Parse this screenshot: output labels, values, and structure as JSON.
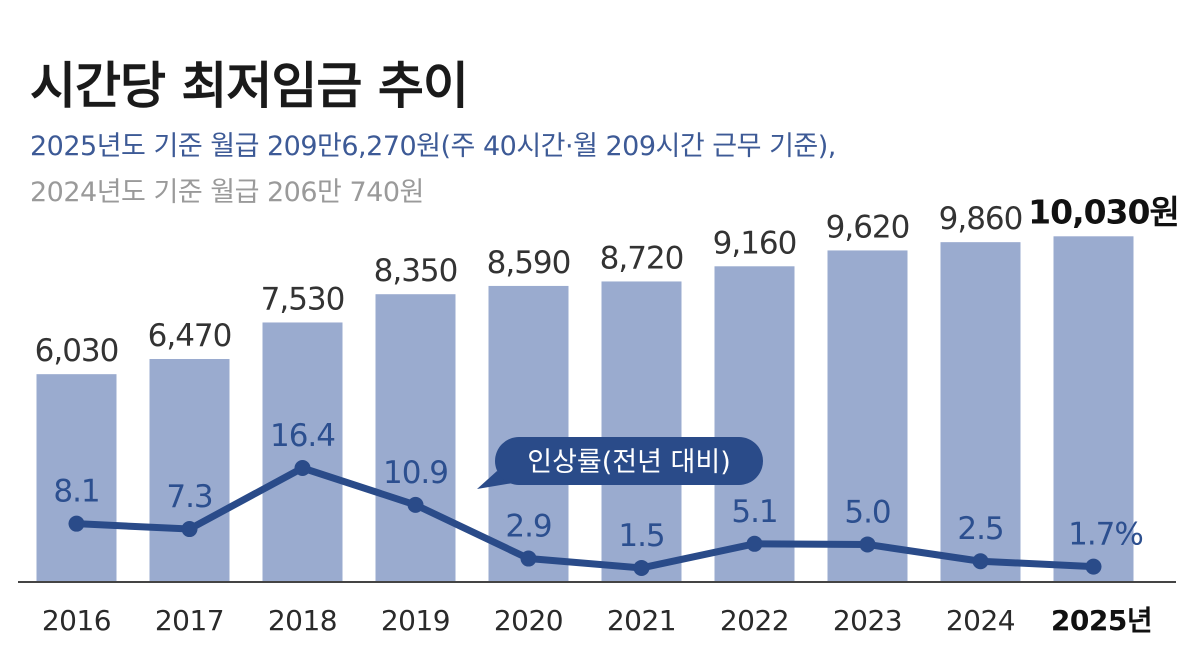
{
  "title": "시간당 최저임금 추이",
  "subtitle_main": "2025년도 기준 월급 209만6,270원(주 40시간·월 209시간 근무 기준),",
  "subtitle_prev": "2024년도 기준 월급 206만 740원",
  "colors": {
    "bar": "#9aabcf",
    "line": "#2a4b89",
    "label_bg": "#2a4b89",
    "subtitle_main": "#3d5a96",
    "subtitle_prev": "#9a9a9a"
  },
  "chart_data": {
    "type": "bar",
    "title": "시간당 최저임금 추이",
    "categories": [
      "2016",
      "2017",
      "2018",
      "2019",
      "2020",
      "2021",
      "2022",
      "2023",
      "2024",
      "2025년"
    ],
    "ylim": [
      0,
      10300
    ],
    "series": [
      {
        "name": "시간당 최저임금",
        "type": "bar",
        "values": [
          6030,
          6470,
          7530,
          8350,
          8590,
          8720,
          9160,
          9620,
          9860,
          10030
        ],
        "labels": [
          "6,030",
          "6,470",
          "7,530",
          "8,350",
          "8,590",
          "8,720",
          "9,160",
          "9,620",
          "9,860",
          "10,030원"
        ]
      },
      {
        "name": "인상률(전년 대비)",
        "type": "line",
        "values": [
          8.1,
          7.3,
          16.4,
          10.9,
          2.9,
          1.5,
          5.1,
          5.0,
          2.5,
          1.7
        ],
        "labels": [
          "8.1",
          "7.3",
          "16.4",
          "10.9",
          "2.9",
          "1.5",
          "5.1",
          "5.0",
          "2.5",
          "1.7%"
        ],
        "ylim": [
          0,
          20
        ]
      }
    ],
    "legend": {
      "label": "인상률(전년 대비)",
      "placement": "middle"
    }
  }
}
